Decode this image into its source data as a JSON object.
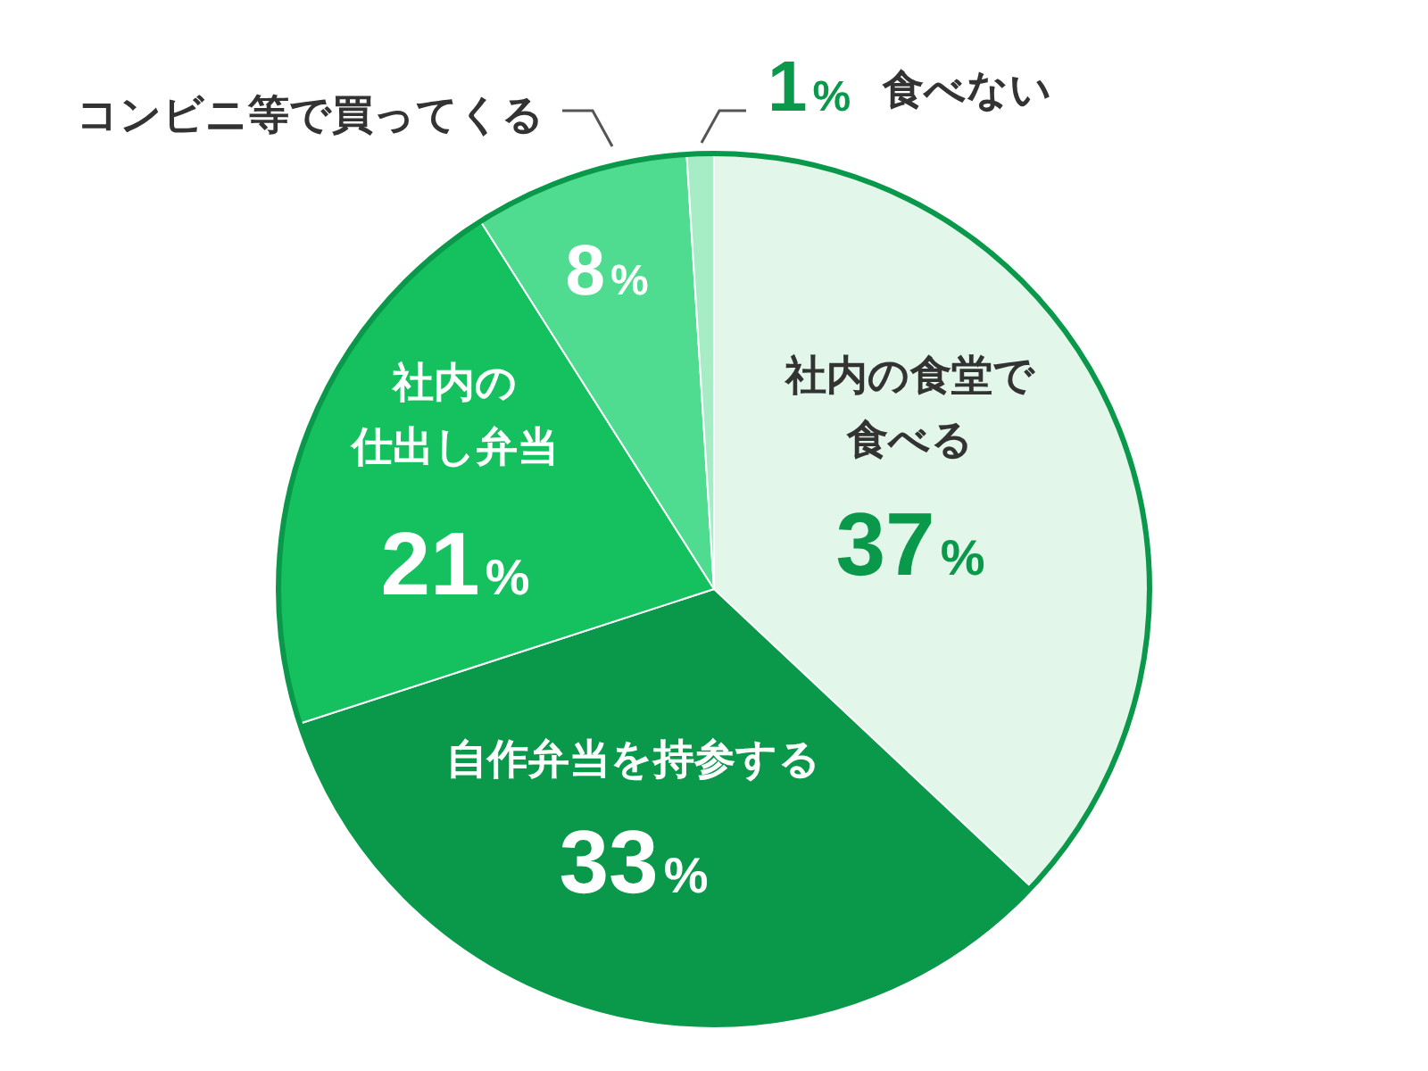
{
  "chart_data": {
    "type": "pie",
    "categories": [
      "社内の食堂で食べる",
      "自作弁当を持参する",
      "社内の仕出し弁当",
      "コンビニ等で買ってくる",
      "食べない"
    ],
    "values": [
      37,
      33,
      21,
      8,
      1
    ],
    "value_labels": [
      "37%",
      "33%",
      "21%",
      "8%",
      "1%"
    ],
    "colors": [
      "#e2f6ea",
      "#0a984a",
      "#15c05f",
      "#4fdc90",
      "#a6ecc4"
    ]
  }
}
